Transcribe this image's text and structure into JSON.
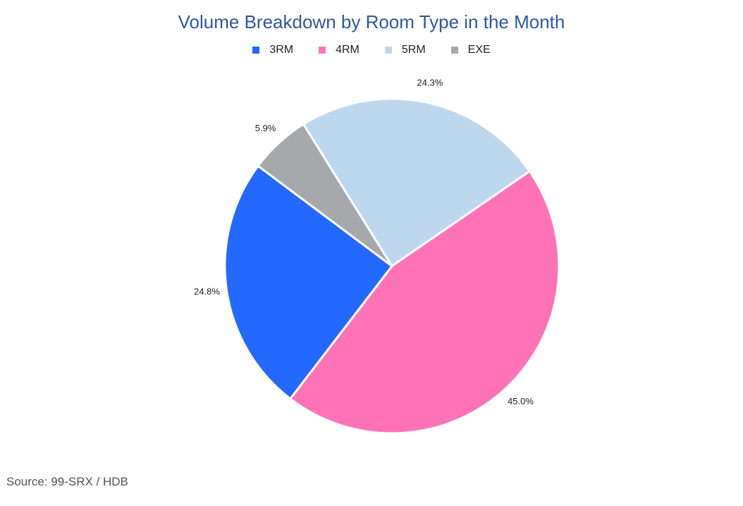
{
  "chart_data": {
    "type": "pie",
    "title": "Volume Breakdown by Room Type in the Month",
    "legend_position": "top",
    "categories": [
      "3RM",
      "4RM",
      "5RM",
      "EXE"
    ],
    "values": [
      24.8,
      45.0,
      24.3,
      5.9
    ],
    "value_labels": [
      "24.8%",
      "45.0%",
      "24.3%",
      "5.9%"
    ],
    "colors": [
      "#2369ff",
      "#ff73b6",
      "#bdd7ee",
      "#a7a8ab"
    ],
    "source": "Source: 99-SRX / HDB"
  }
}
